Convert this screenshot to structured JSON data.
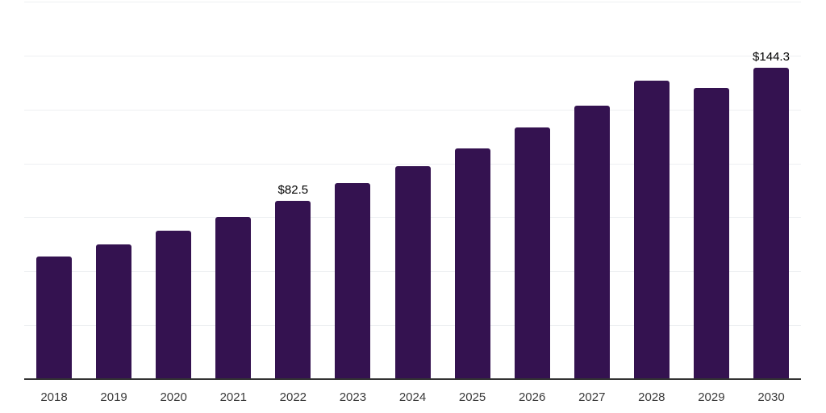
{
  "chart_data": {
    "type": "bar",
    "title": "",
    "xlabel": "",
    "ylabel": "",
    "categories": [
      "2018",
      "2019",
      "2020",
      "2021",
      "2022",
      "2023",
      "2024",
      "2025",
      "2026",
      "2027",
      "2028",
      "2029",
      "2030"
    ],
    "values": [
      56.7,
      62.5,
      68.9,
      75.0,
      82.5,
      90.7,
      98.7,
      107.1,
      116.5,
      126.6,
      138.2,
      134.9,
      144.3
    ],
    "ylim": [
      0,
      175
    ],
    "gridline_step": 25,
    "grid": true,
    "legend": false,
    "y_tick_labels_visible": false,
    "data_labels": {
      "2022": "$82.5",
      "2030": "$144.3"
    },
    "colors": {
      "bar": "#341250",
      "gridline": "#eef0f2",
      "axis_line": "#333333",
      "tick_label": "#3a3a3a",
      "data_label": "#000000",
      "background": "#ffffff"
    }
  }
}
